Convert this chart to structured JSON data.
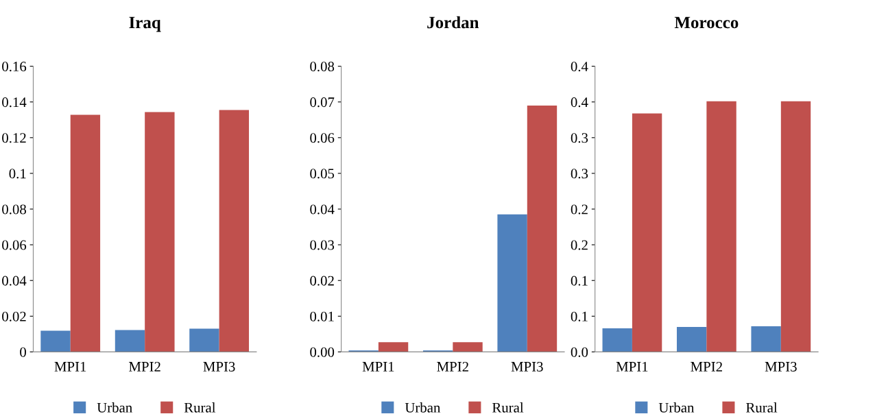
{
  "chart_data": [
    {
      "type": "bar",
      "title": "Iraq",
      "categories": [
        "MPI1",
        "MPI2",
        "MPI3"
      ],
      "series": [
        {
          "name": "Urban",
          "color": "#4f81bd",
          "values": [
            0.0119,
            0.0122,
            0.013
          ]
        },
        {
          "name": "Rural",
          "color": "#c0504d",
          "values": [
            0.1328,
            0.1343,
            0.1355
          ]
        }
      ],
      "ylim": [
        0,
        0.16
      ],
      "yticks": [
        {
          "value": 0,
          "label": "0"
        },
        0.02,
        0.04,
        0.06,
        0.08,
        {
          "value": 0.1,
          "label": "0.1"
        },
        0.12,
        0.14,
        0.16
      ],
      "grid": false,
      "legend": "bottom"
    },
    {
      "type": "bar",
      "title": "Jordan",
      "categories": [
        "MPI1",
        "MPI2",
        "MPI3"
      ],
      "series": [
        {
          "name": "Urban",
          "color": "#4f81bd",
          "values": [
            0.0004,
            0.0004,
            0.0385
          ]
        },
        {
          "name": "Rural",
          "color": "#c0504d",
          "values": [
            0.0027,
            0.0027,
            0.069
          ]
        }
      ],
      "ylim": [
        0,
        0.08
      ],
      "yticks": [
        {
          "value": 0,
          "label": "0.00"
        },
        {
          "value": 0.01,
          "label": "0.01"
        },
        {
          "value": 0.02,
          "label": "0.02"
        },
        {
          "value": 0.03,
          "label": "0.03"
        },
        {
          "value": 0.04,
          "label": "0.04"
        },
        {
          "value": 0.05,
          "label": "0.05"
        },
        {
          "value": 0.06,
          "label": "0.06"
        },
        {
          "value": 0.07,
          "label": "0.07"
        },
        {
          "value": 0.08,
          "label": "0.08"
        }
      ],
      "grid": false,
      "legend": "bottom"
    },
    {
      "type": "bar",
      "title": "Morocco",
      "categories": [
        "MPI1",
        "MPI2",
        "MPI3"
      ],
      "series": [
        {
          "name": "Urban",
          "color": "#4f81bd",
          "values": [
            0.033,
            0.035,
            0.036
          ]
        },
        {
          "name": "Rural",
          "color": "#c0504d",
          "values": [
            0.334,
            0.351,
            0.351
          ]
        }
      ],
      "ylim": [
        0,
        0.4
      ],
      "yticks": [
        {
          "value": 0,
          "label": "0.0"
        },
        {
          "value": 0.05,
          "label": "0.1"
        },
        {
          "value": 0.1,
          "label": "0.1"
        },
        {
          "value": 0.15,
          "label": "0.2"
        },
        {
          "value": 0.2,
          "label": "0.2"
        },
        {
          "value": 0.25,
          "label": "0.3"
        },
        {
          "value": 0.3,
          "label": "0.3"
        },
        {
          "value": 0.35,
          "label": "0.4"
        },
        {
          "value": 0.4,
          "label": "0.4"
        }
      ],
      "grid": false,
      "legend": "bottom"
    }
  ]
}
